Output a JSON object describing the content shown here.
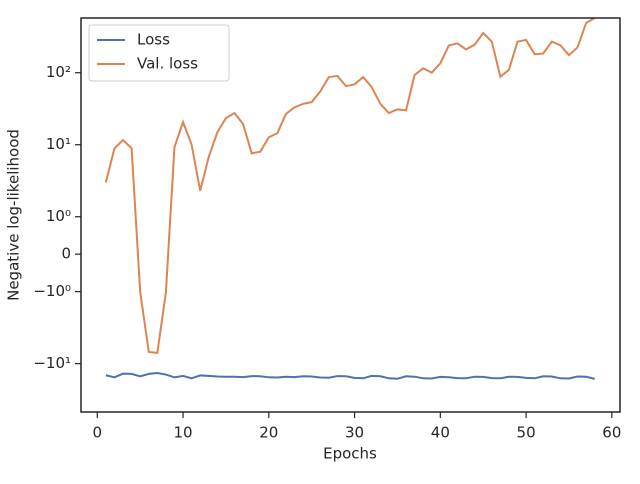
{
  "chart_data": {
    "type": "line",
    "xlabel": "Epochs",
    "ylabel": "Negative log-likelihood",
    "yscale": "symlog",
    "linthresh": 1,
    "x": [
      1,
      2,
      3,
      4,
      5,
      6,
      7,
      8,
      9,
      10,
      11,
      12,
      13,
      14,
      15,
      16,
      17,
      18,
      19,
      20,
      21,
      22,
      23,
      24,
      25,
      26,
      27,
      28,
      29,
      30,
      31,
      32,
      33,
      34,
      35,
      36,
      37,
      38,
      39,
      40,
      41,
      42,
      43,
      44,
      45,
      46,
      47,
      48,
      49,
      50,
      51,
      52,
      53,
      54,
      55,
      56,
      57,
      58
    ],
    "series": [
      {
        "name": "Loss",
        "color": "#4c72b0",
        "values": [
          -14.5,
          -15.5,
          -13.8,
          -13.9,
          -15,
          -13.9,
          -13.5,
          -14.2,
          -15.5,
          -14.8,
          -16,
          -14.6,
          -14.8,
          -15.1,
          -15.2,
          -15.2,
          -15.4,
          -14.9,
          -15,
          -15.5,
          -15.6,
          -15.2,
          -15.4,
          -15,
          -15.1,
          -15.6,
          -15.7,
          -14.9,
          -15,
          -15.8,
          -16,
          -14.8,
          -15,
          -16,
          -16.2,
          -15,
          -15.2,
          -16,
          -16.1,
          -15.3,
          -15.5,
          -15.9,
          -16,
          -15.2,
          -15.3,
          -15.9,
          -16,
          -15.2,
          -15.3,
          -15.8,
          -16,
          -15,
          -15.1,
          -16,
          -16.1,
          -15.1,
          -15.2,
          -16.3
        ]
      },
      {
        "name": "Val. loss",
        "color": "#dd8452",
        "values": [
          3.0,
          8.9,
          11.6,
          8.9,
          -1.0,
          -6.9,
          -7.1,
          -1.02,
          9.3,
          20.6,
          10,
          2.3,
          6.8,
          14.9,
          23.4,
          27.5,
          19.4,
          7.6,
          8,
          12.7,
          14.5,
          26.8,
          33,
          37,
          39,
          55,
          87,
          90,
          65,
          69,
          87,
          63,
          37,
          27.5,
          31,
          30,
          93,
          115,
          100,
          135,
          240,
          255,
          210,
          245,
          355,
          270,
          88,
          110,
          270,
          285,
          180,
          185,
          270,
          240,
          175,
          225,
          490,
          575
        ]
      }
    ],
    "xlim": [
      -1.9,
      60.95
    ],
    "xticks": [
      0,
      10,
      20,
      30,
      40,
      50,
      60
    ],
    "ylim": [
      -47,
      575
    ],
    "yticks": [
      {
        "value": -10,
        "label": "−10¹"
      },
      {
        "value": -1,
        "label": "−10⁰"
      },
      0,
      {
        "value": 1,
        "label": "10⁰"
      },
      {
        "value": 10,
        "label": "10¹"
      },
      {
        "value": 100,
        "label": "10²"
      }
    ],
    "legend": "upper left"
  }
}
